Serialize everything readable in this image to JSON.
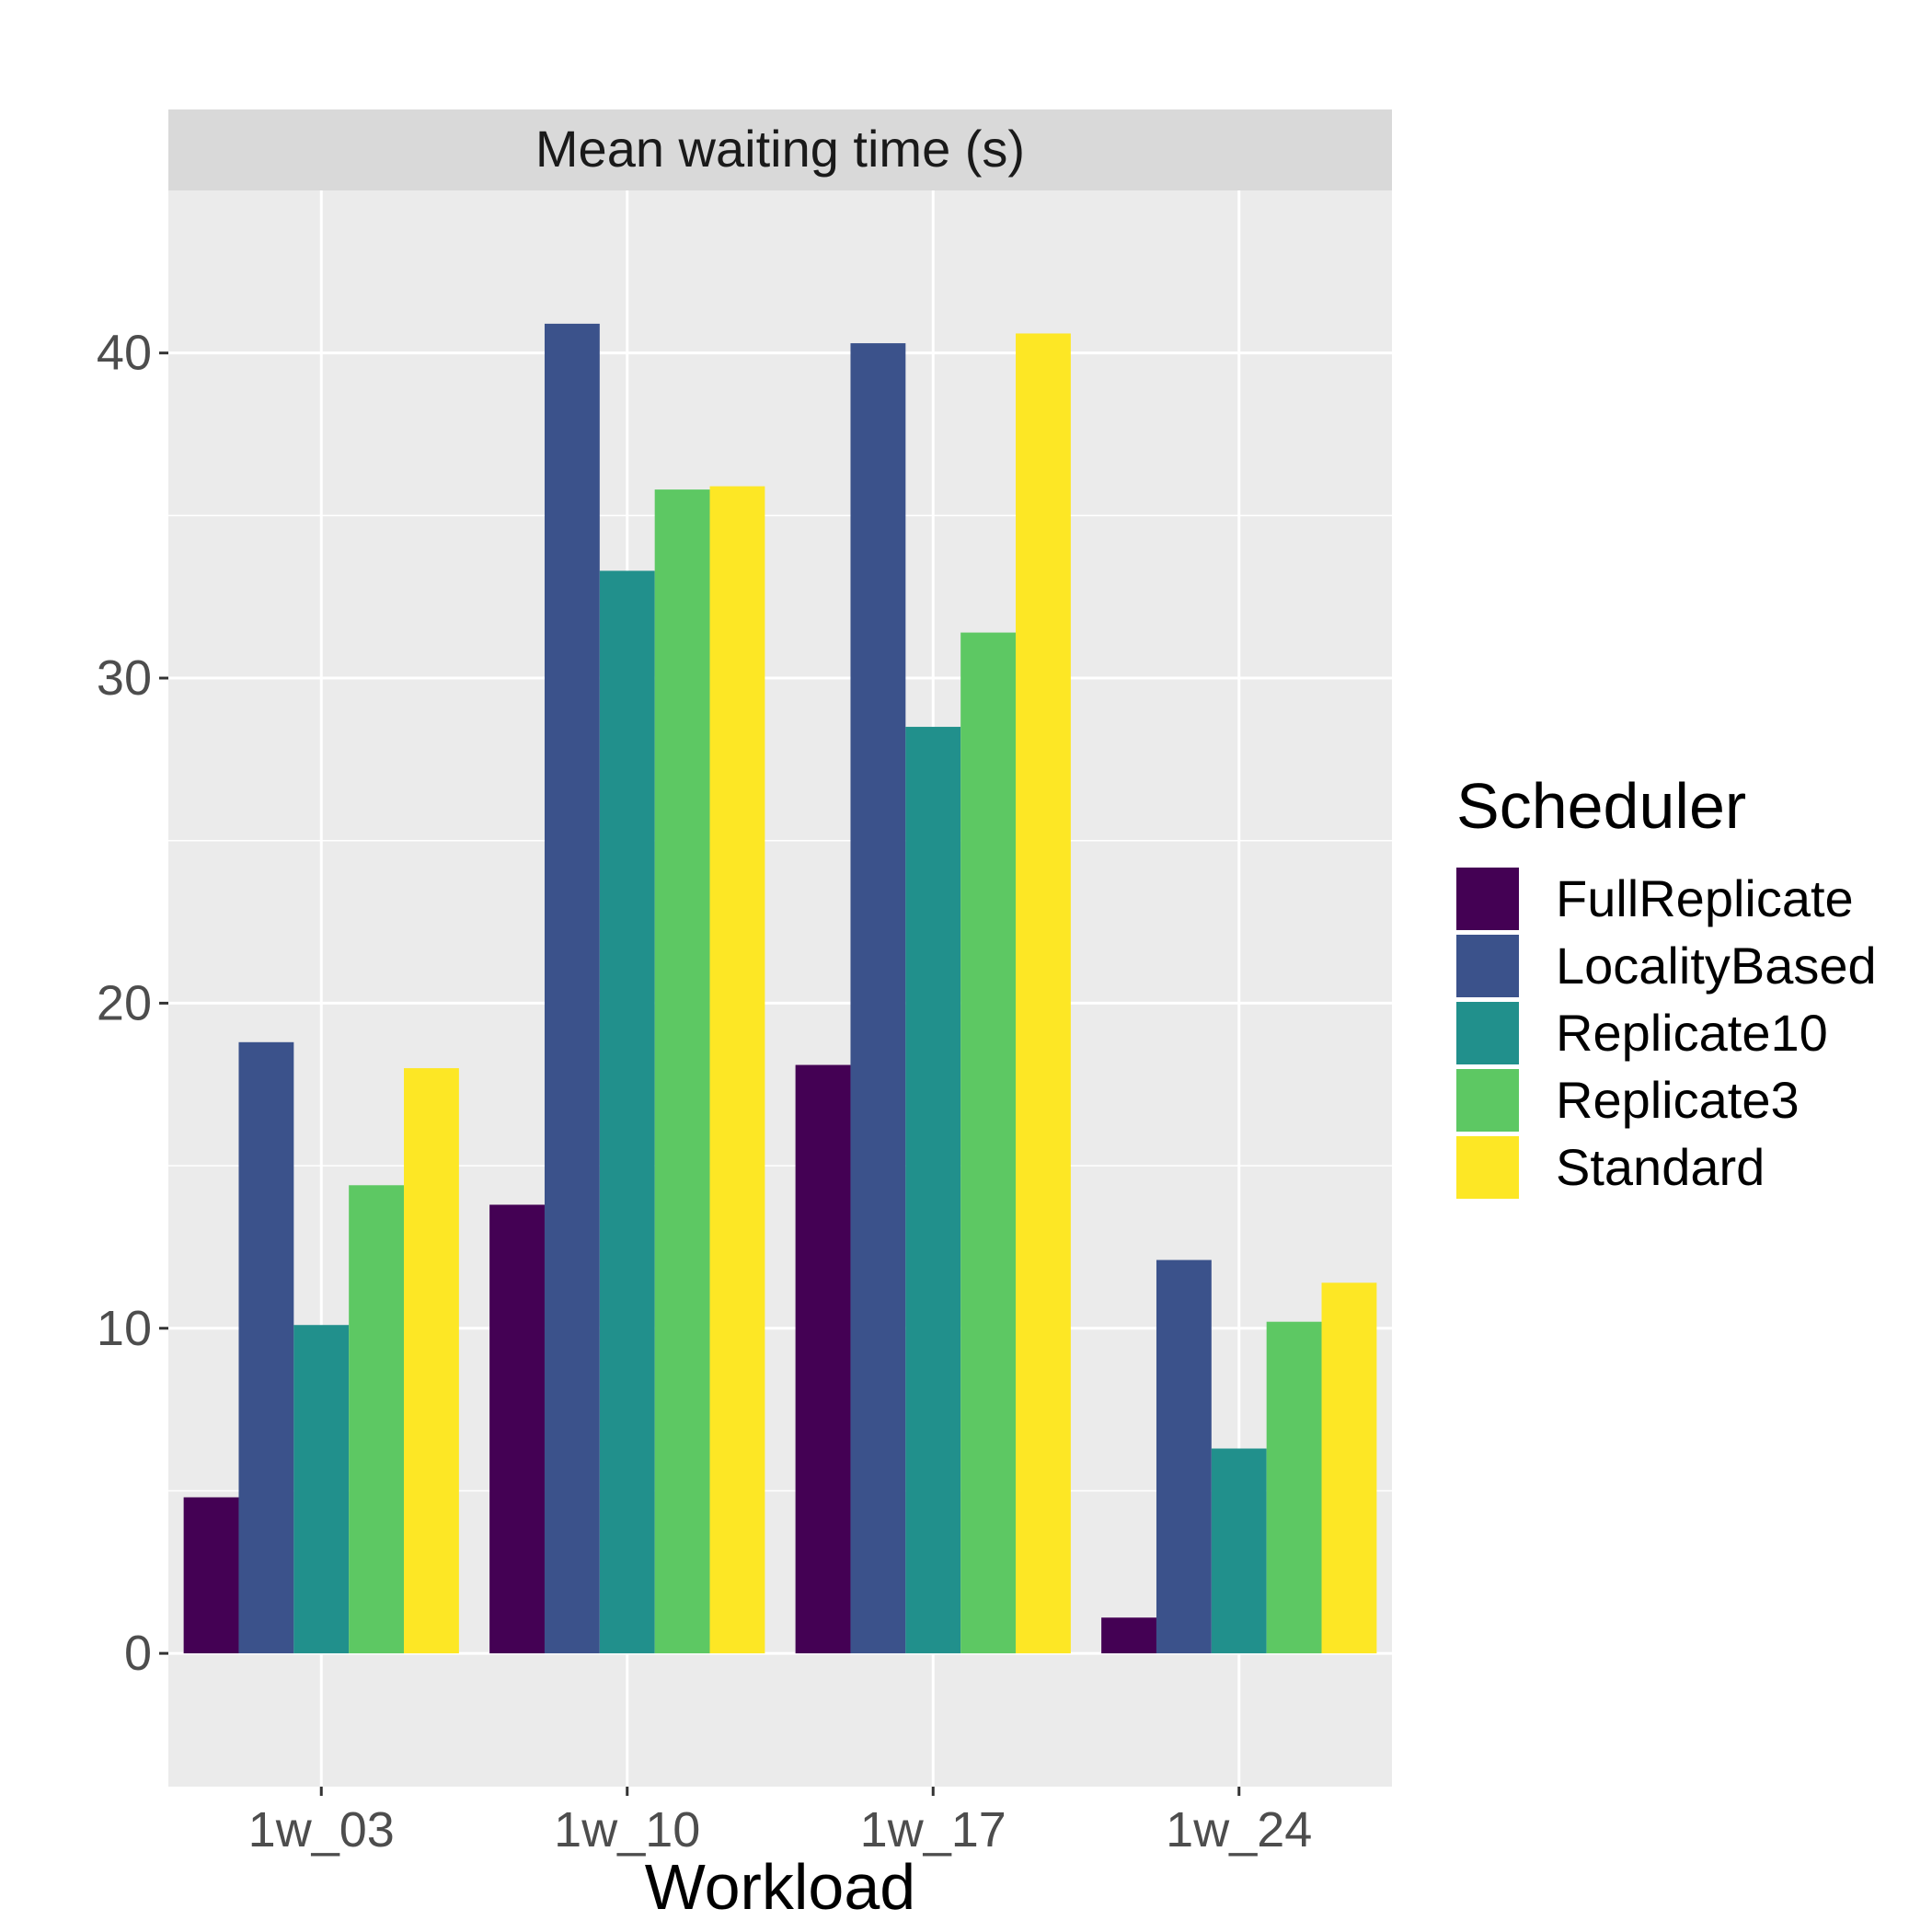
{
  "chart_data": {
    "type": "bar",
    "facet_title": "Mean waiting time (s)",
    "xlabel": "Workload",
    "ylabel": "",
    "categories": [
      "1w_03",
      "1w_10",
      "1w_17",
      "1w_24"
    ],
    "ylim": [
      -4.1,
      45.0
    ],
    "yticks": [
      0,
      10,
      20,
      30,
      40
    ],
    "grid": true,
    "legend_title": "Scheduler",
    "legend_position": "right",
    "series": [
      {
        "name": "FullReplicate",
        "color": "#440154",
        "values": [
          4.8,
          13.8,
          18.1,
          1.1
        ]
      },
      {
        "name": "LocalityBased",
        "color": "#3B528B",
        "values": [
          18.8,
          40.9,
          40.3,
          12.1
        ]
      },
      {
        "name": "Replicate10",
        "color": "#21908C",
        "values": [
          10.1,
          33.3,
          28.5,
          6.3
        ]
      },
      {
        "name": "Replicate3",
        "color": "#5DC863",
        "values": [
          14.4,
          35.8,
          31.4,
          10.2
        ]
      },
      {
        "name": "Standard",
        "color": "#FDE725",
        "values": [
          18.0,
          35.9,
          40.6,
          11.4
        ]
      }
    ]
  }
}
